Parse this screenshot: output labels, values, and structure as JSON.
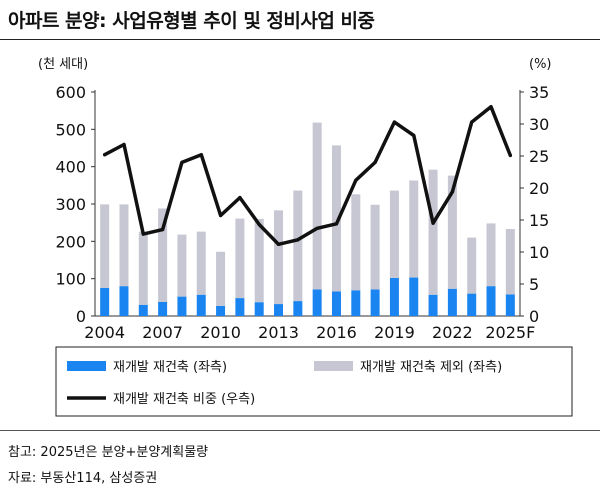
{
  "title": "아파트 분양: 사업유형별 추이 및 정비사업 비중",
  "colors": {
    "redev": "#1a85f0",
    "nonredev": "#c6c7d2",
    "share": "#111111"
  },
  "notes": {
    "note": "참고: 2025년은 분양+분양계획물량",
    "source": "자료: 부동산114, 삼성증권"
  },
  "chart_data": {
    "type": "bar+line",
    "stacked": true,
    "categories": [
      "2004",
      "2005",
      "2006",
      "2007",
      "2008",
      "2009",
      "2010",
      "2011",
      "2012",
      "2013",
      "2014",
      "2015",
      "2016",
      "2017",
      "2018",
      "2019",
      "2020",
      "2021",
      "2022",
      "2023",
      "2024",
      "2025F"
    ],
    "x_tick_labels": [
      "2004",
      "2007",
      "2010",
      "2013",
      "2016",
      "2019",
      "2022",
      "2025F"
    ],
    "left_axis": {
      "unit_label": "(천 세대)",
      "ylim": [
        0,
        600
      ],
      "ticks": [
        "0",
        "100",
        "200",
        "300",
        "400",
        "500",
        "600"
      ]
    },
    "right_axis": {
      "unit_label": "(%)",
      "ylim": [
        0,
        35
      ],
      "ticks": [
        "0",
        "5",
        "10",
        "15",
        "20",
        "25",
        "30",
        "35"
      ]
    },
    "series": [
      {
        "name": "재개발 재건축 (좌측)",
        "kind": "bar",
        "axis": "left",
        "values": [
          75,
          80,
          30,
          38,
          52,
          57,
          27,
          48,
          37,
          32,
          40,
          71,
          66,
          69,
          71,
          102,
          103,
          57,
          73,
          60,
          80,
          58
        ]
      },
      {
        "name": "재개발 재건축 제외 (좌측)",
        "kind": "bar",
        "axis": "left",
        "values": [
          224,
          219,
          196,
          250,
          166,
          169,
          145,
          213,
          223,
          251,
          296,
          447,
          391,
          257,
          227,
          234,
          260,
          335,
          303,
          150,
          168,
          175
        ]
      },
      {
        "name": "재개발 재건축 비중 (우측)",
        "kind": "line",
        "axis": "right",
        "values": [
          25.2,
          26.8,
          12.8,
          13.5,
          24,
          25.2,
          15.7,
          18.5,
          14.3,
          11.2,
          11.9,
          13.7,
          14.4,
          21.2,
          24,
          30.3,
          28.2,
          14.5,
          19.4,
          30.3,
          32.7,
          25.1
        ]
      }
    ],
    "legend": [
      "재개발 재건축 (좌측)",
      "재개발 재건축 제외 (좌측)",
      "재개발 재건축 비중 (우측)"
    ]
  }
}
